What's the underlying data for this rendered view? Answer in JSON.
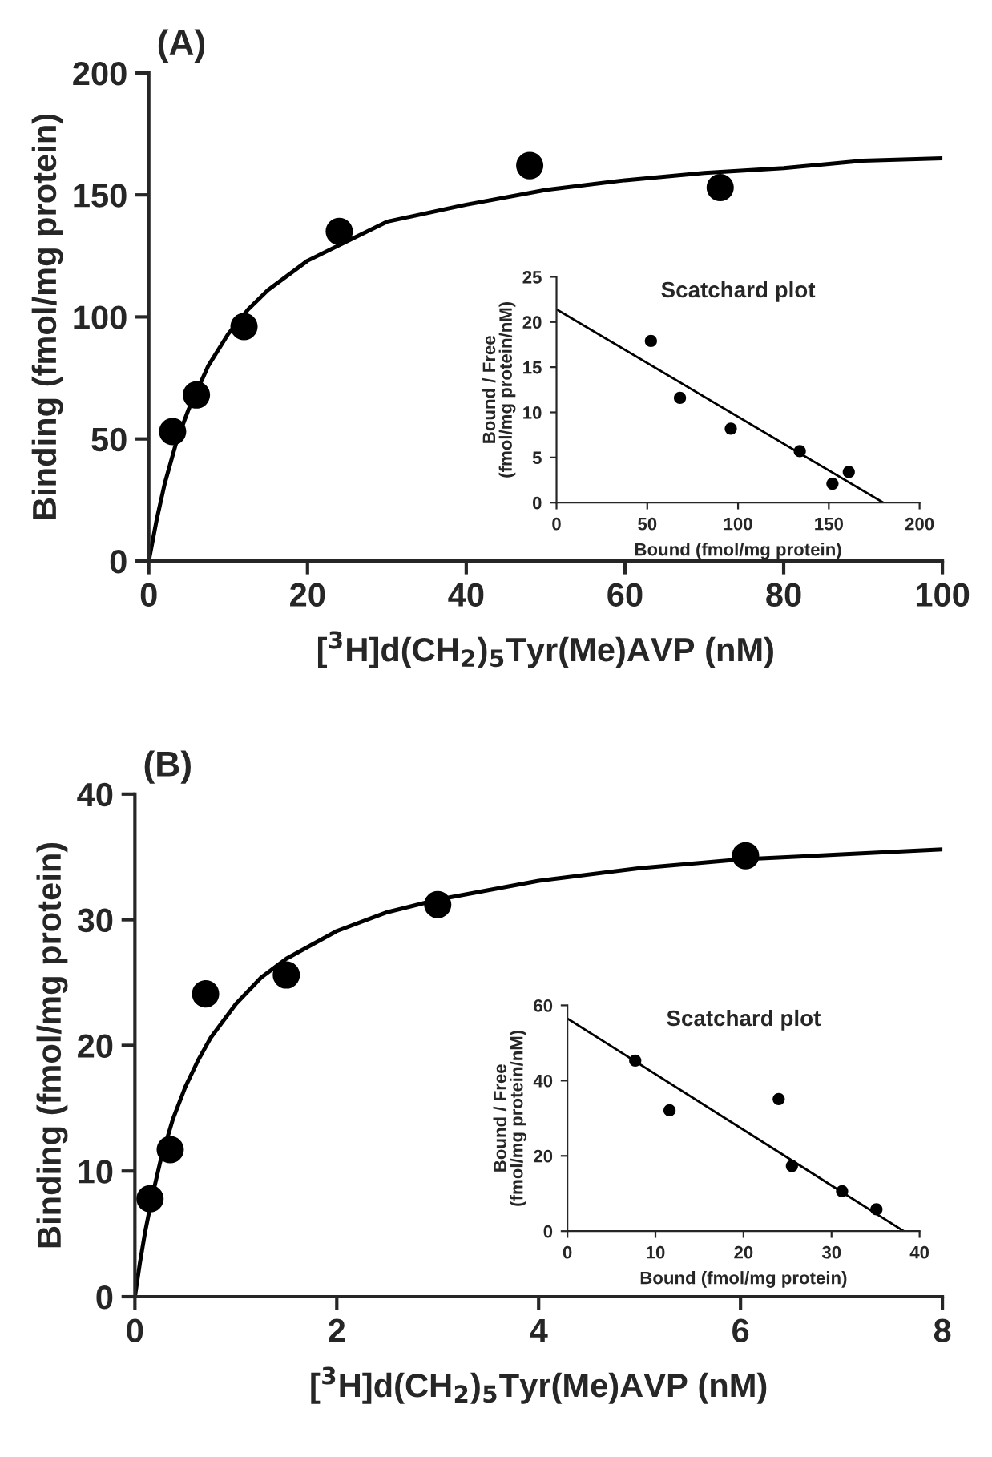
{
  "chart_data": [
    {
      "type": "scatter",
      "title": "(A)",
      "xlabel": "[$^{3}$H]d(CH$_{2}$)$_{5}$Tyr(Me)AVP (nM)",
      "ylabel": "Binding (fmol/mg protein)",
      "xlim": [
        0,
        100
      ],
      "ylim": [
        0,
        200
      ],
      "xticks": [
        0,
        20,
        40,
        60,
        80,
        100
      ],
      "yticks": [
        0,
        50,
        100,
        150,
        200
      ],
      "series": [
        {
          "color": "#000000",
          "marker": "circle",
          "x": [
            3,
            6,
            12,
            24,
            48,
            72
          ],
          "values": [
            53,
            68,
            96,
            135,
            162,
            153
          ]
        },
        {
          "type": "line",
          "color": "#000000",
          "x": [
            0,
            1,
            2,
            3.5,
            5,
            7.5,
            10,
            12.5,
            15,
            20,
            25,
            30,
            40,
            50,
            60,
            70,
            80,
            90,
            100
          ],
          "values": [
            0,
            17,
            31.6,
            49,
            62,
            80,
            93,
            103,
            111,
            123,
            131,
            139,
            146,
            152,
            156,
            159,
            161,
            164,
            165
          ]
        }
      ]
    },
    {
      "type": "scatter",
      "title": "Scatchard plot",
      "xlabel": "Bound (fmol/mg protein)",
      "ylabel": "Bound / Free\n(fmol/mg protein/nM)",
      "xlim": [
        0,
        200
      ],
      "ylim": [
        0,
        25
      ],
      "xticks": [
        0,
        50,
        100,
        150,
        200
      ],
      "yticks": [
        0,
        5,
        10,
        15,
        20,
        25
      ],
      "series": [
        {
          "color": "#000000",
          "marker": "circle",
          "x": [
            52,
            68,
            96,
            134,
            152,
            161
          ],
          "values": [
            17.9,
            11.6,
            8.2,
            5.7,
            2.1,
            3.4
          ]
        },
        {
          "type": "line",
          "color": "#000000",
          "x": [
            0,
            180
          ],
          "values": [
            21.4,
            0
          ]
        }
      ]
    },
    {
      "type": "scatter",
      "title": "(B)",
      "xlabel": "[$^{3}$H]d(CH$_{2}$)$_{5}$Tyr(Me)AVP (nM)",
      "ylabel": "Binding (fmol/mg protein)",
      "xlim": [
        0,
        8
      ],
      "ylim": [
        0,
        40
      ],
      "xticks": [
        0,
        2,
        4,
        6,
        8
      ],
      "yticks": [
        0,
        10,
        20,
        30,
        40
      ],
      "series": [
        {
          "color": "#000000",
          "marker": "circle",
          "x": [
            0.15,
            0.35,
            0.7,
            1.5,
            3,
            6.05
          ],
          "values": [
            7.8,
            11.7,
            24.1,
            25.6,
            31.2,
            35.1
          ]
        },
        {
          "type": "line",
          "color": "#000000",
          "x": [
            0,
            0.05,
            0.1,
            0.175,
            0.25,
            0.375,
            0.5,
            0.625,
            0.75,
            1,
            1.25,
            1.5,
            2,
            2.5,
            3,
            4,
            5,
            6,
            7,
            8
          ],
          "values": [
            0,
            2.7,
            5.1,
            8.1,
            10.7,
            14.1,
            16.7,
            18.8,
            20.6,
            23.3,
            25.4,
            26.9,
            29.1,
            30.6,
            31.6,
            33.1,
            34.1,
            34.8,
            35.2,
            35.6
          ]
        }
      ]
    },
    {
      "type": "scatter",
      "title": "Scatchard plot",
      "xlabel": "Bound (fmol/mg protein)",
      "ylabel": "Bound / Free\n(fmol/mg protein/nM)",
      "xlim": [
        0,
        40
      ],
      "ylim": [
        0,
        60
      ],
      "xticks": [
        0,
        10,
        20,
        30,
        40
      ],
      "yticks": [
        0,
        20,
        40,
        60
      ],
      "series": [
        {
          "color": "#000000",
          "marker": "circle",
          "x": [
            7.7,
            11.6,
            24,
            25.5,
            31.2,
            35.1
          ],
          "values": [
            45.3,
            32.1,
            35.1,
            17.3,
            10.6,
            5.8
          ]
        },
        {
          "type": "line",
          "color": "#000000",
          "x": [
            0,
            38.2
          ],
          "values": [
            56.5,
            0
          ]
        }
      ]
    }
  ]
}
